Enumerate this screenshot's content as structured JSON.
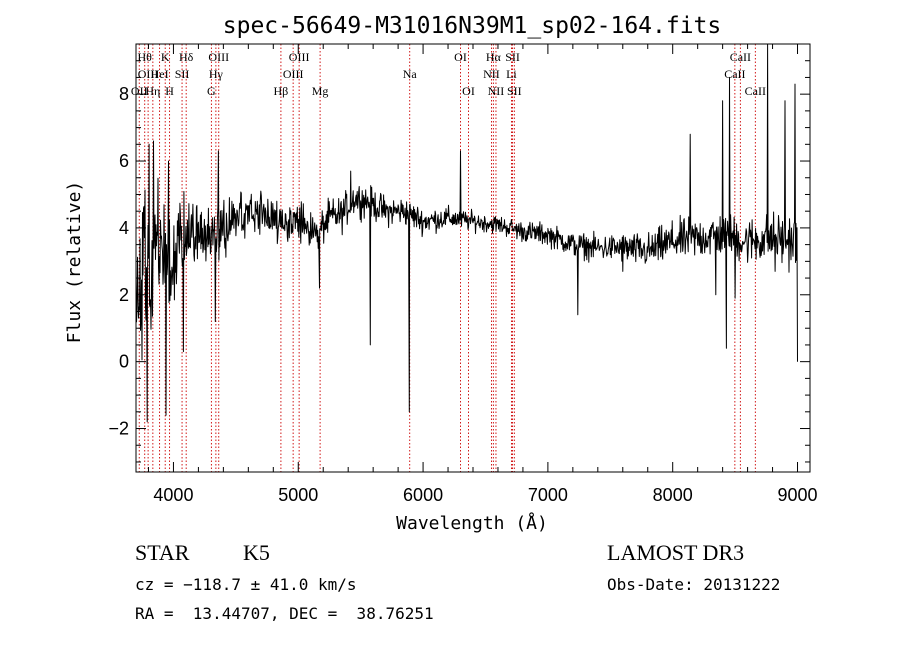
{
  "chart_data": {
    "type": "line",
    "title": "spec-56649-M31016N39M1_sp02-164.fits",
    "xlabel": "Wavelength (Å)",
    "ylabel": "Flux (relative)",
    "xlim": [
      3700,
      9100
    ],
    "ylim": [
      -3.3,
      9.5
    ],
    "xticks": [
      4000,
      5000,
      6000,
      7000,
      8000,
      9000
    ],
    "yticks": [
      -2,
      0,
      2,
      4,
      6,
      8
    ],
    "spectrum_anchors": [
      [
        3700,
        1.5
      ],
      [
        3780,
        3.0
      ],
      [
        3850,
        3.2
      ],
      [
        3950,
        3.3
      ],
      [
        4050,
        3.5
      ],
      [
        4200,
        3.8
      ],
      [
        4350,
        3.9
      ],
      [
        4500,
        4.2
      ],
      [
        4650,
        4.5
      ],
      [
        4800,
        4.3
      ],
      [
        4950,
        4.2
      ],
      [
        5050,
        4.1
      ],
      [
        5150,
        3.8
      ],
      [
        5250,
        4.3
      ],
      [
        5350,
        4.4
      ],
      [
        5450,
        4.9
      ],
      [
        5550,
        4.8
      ],
      [
        5700,
        4.5
      ],
      [
        5850,
        4.5
      ],
      [
        6000,
        4.2
      ],
      [
        6200,
        4.3
      ],
      [
        6400,
        4.2
      ],
      [
        6600,
        4.1
      ],
      [
        6800,
        3.9
      ],
      [
        7000,
        3.8
      ],
      [
        7200,
        3.5
      ],
      [
        7400,
        3.4
      ],
      [
        7600,
        3.4
      ],
      [
        7800,
        3.3
      ],
      [
        8000,
        3.6
      ],
      [
        8200,
        3.7
      ],
      [
        8400,
        3.8
      ],
      [
        8600,
        3.6
      ],
      [
        8800,
        3.7
      ],
      [
        9000,
        3.6
      ]
    ],
    "noise_bands": [
      [
        3700,
        1.6
      ],
      [
        3900,
        1.3
      ],
      [
        4100,
        0.9
      ],
      [
        4400,
        0.6
      ],
      [
        5000,
        0.45
      ],
      [
        5600,
        0.35
      ],
      [
        6500,
        0.2
      ],
      [
        7000,
        0.25
      ],
      [
        7500,
        0.3
      ],
      [
        8000,
        0.45
      ],
      [
        8500,
        0.5
      ],
      [
        9000,
        0.6
      ]
    ],
    "spikes": [
      {
        "x": 3790,
        "y": -1.8
      },
      {
        "x": 3805,
        "y": 6.5
      },
      {
        "x": 3840,
        "y": 6.6
      },
      {
        "x": 3940,
        "y": -1.6
      },
      {
        "x": 3960,
        "y": 6.0
      },
      {
        "x": 4080,
        "y": 0.3
      },
      {
        "x": 4335,
        "y": 1.2
      },
      {
        "x": 4360,
        "y": 6.3
      },
      {
        "x": 5170,
        "y": 2.2
      },
      {
        "x": 5420,
        "y": 5.7
      },
      {
        "x": 5577,
        "y": 0.5
      },
      {
        "x": 5890,
        "y": -1.5
      },
      {
        "x": 6300,
        "y": 6.3
      },
      {
        "x": 6870,
        "y": 3.7
      },
      {
        "x": 7240,
        "y": 1.4
      },
      {
        "x": 7600,
        "y": 2.7
      },
      {
        "x": 8140,
        "y": 6.8
      },
      {
        "x": 8345,
        "y": 2.0
      },
      {
        "x": 8400,
        "y": 7.8
      },
      {
        "x": 8430,
        "y": 0.4
      },
      {
        "x": 8455,
        "y": 8.5
      },
      {
        "x": 8500,
        "y": 1.9
      },
      {
        "x": 8760,
        "y": 9.5
      },
      {
        "x": 8820,
        "y": 2.7
      },
      {
        "x": 8900,
        "y": 7.8
      },
      {
        "x": 8980,
        "y": 8.3
      },
      {
        "x": 9000,
        "y": 0.0
      }
    ],
    "lines": [
      {
        "x": 3726,
        "label": "OII",
        "row": 2
      },
      {
        "x": 3770,
        "label": "Hθ",
        "row": 0
      },
      {
        "x": 3797,
        "label": "OIII",
        "row": 1
      },
      {
        "x": 3835,
        "label": "Hη",
        "row": 2
      },
      {
        "x": 3889,
        "label": "HeI",
        "row": 1
      },
      {
        "x": 3934,
        "label": "K",
        "row": 0
      },
      {
        "x": 3969,
        "label": "H",
        "row": 2
      },
      {
        "x": 4069,
        "label": "SII",
        "row": 1
      },
      {
        "x": 4102,
        "label": "Hδ",
        "row": 0
      },
      {
        "x": 4304,
        "label": "G",
        "row": 2
      },
      {
        "x": 4340,
        "label": "Hγ",
        "row": 1
      },
      {
        "x": 4363,
        "label": "OIII",
        "row": 0
      },
      {
        "x": 4861,
        "label": "Hβ",
        "row": 2
      },
      {
        "x": 4959,
        "label": "OIII",
        "row": 1
      },
      {
        "x": 5007,
        "label": "OIII",
        "row": 0
      },
      {
        "x": 5175,
        "label": "Mg",
        "row": 2
      },
      {
        "x": 5893,
        "label": "Na",
        "row": 1
      },
      {
        "x": 6300,
        "label": "OI",
        "row": 0
      },
      {
        "x": 6364,
        "label": "OI",
        "row": 2
      },
      {
        "x": 6548,
        "label": "NII",
        "row": 1
      },
      {
        "x": 6563,
        "label": "Hα",
        "row": 0
      },
      {
        "x": 6584,
        "label": "NII",
        "row": 2
      },
      {
        "x": 6708,
        "label": "Li",
        "row": 1
      },
      {
        "x": 6717,
        "label": "SII",
        "row": 0
      },
      {
        "x": 6731,
        "label": "SII",
        "row": 2
      },
      {
        "x": 8498,
        "label": "CaII",
        "row": 1
      },
      {
        "x": 8542,
        "label": "CaII",
        "row": 0
      },
      {
        "x": 8662,
        "label": "CaII",
        "row": 2
      }
    ],
    "colors": {
      "spectrum": "#000000",
      "line_marker": "#cc0000",
      "axes": "#000000"
    }
  },
  "info": {
    "object_class": "STAR",
    "subclass": "K5",
    "survey": "LAMOST DR3",
    "velocity": "cz = −118.7 ± 41.0 km/s",
    "obs_date": "Obs-Date: 20131222",
    "coordinates": "RA =  13.44707, DEC =  38.76251"
  }
}
